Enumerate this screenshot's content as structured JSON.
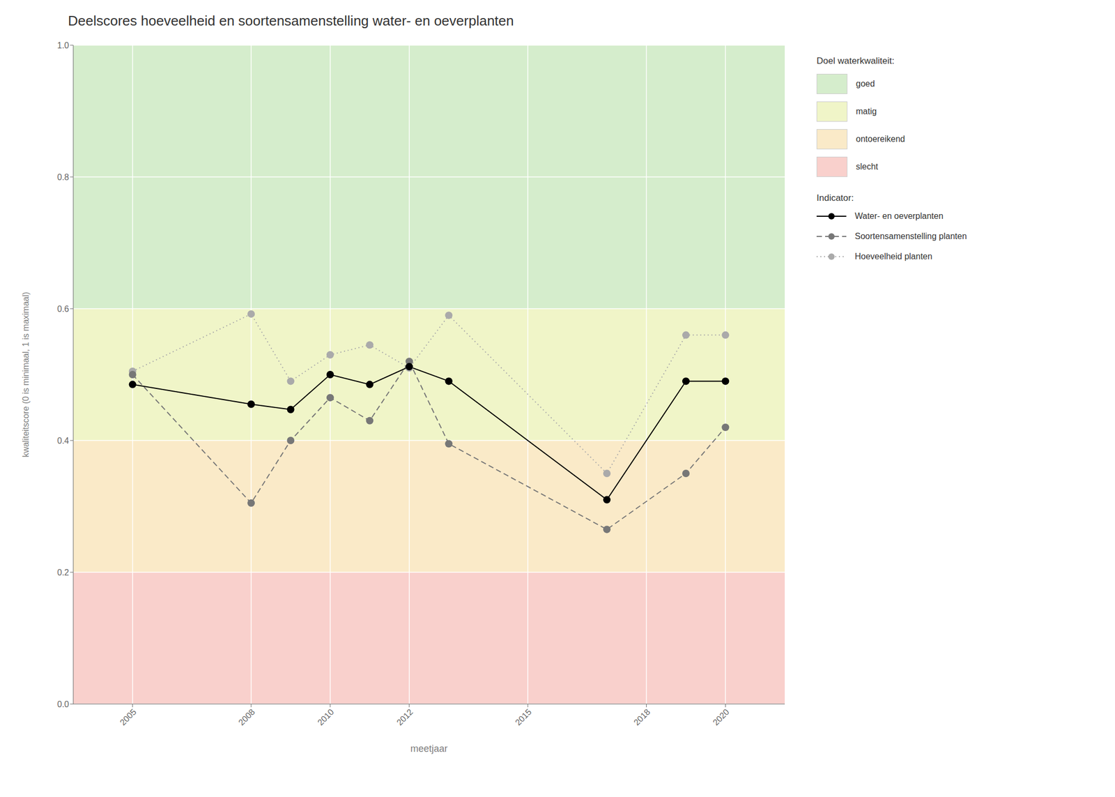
{
  "chart_data": {
    "type": "line",
    "title": "Deelscores hoeveelheid en soortensamenstelling water- en oeverplanten",
    "x_label": "meetjaar",
    "y_label": "kwaliteitscore (0 is minimaal, 1 is maximaal)",
    "xlim": [
      2003.5,
      2021.5
    ],
    "xticks": [
      2005,
      2008,
      2010,
      2012,
      2015,
      2018,
      2020
    ],
    "ylim": [
      0.0,
      1.0
    ],
    "yticks": [
      {
        "value": 0.0,
        "label": "0.0"
      },
      0.2,
      0.4,
      0.6,
      0.8,
      {
        "value": 1.0,
        "label": "1.0"
      }
    ],
    "grid": true,
    "legend": "right",
    "legend_title": "Indicator:",
    "bands": {
      "title": "Doel waterkwaliteit:",
      "items": [
        {
          "name": "goed",
          "color": "#d5edcc",
          "range": [
            0.6,
            1.0
          ]
        },
        {
          "name": "matig",
          "color": "#f0f5c8",
          "range": [
            0.4,
            0.6
          ]
        },
        {
          "name": "ontoereikend",
          "color": "#faeac8",
          "range": [
            0.2,
            0.4
          ]
        },
        {
          "name": "slecht",
          "color": "#f9d0cc",
          "range": [
            0.0,
            0.2
          ]
        }
      ]
    },
    "x": [
      2005,
      2008,
      2009,
      2010,
      2011,
      2012,
      2013,
      2017,
      2019,
      2020
    ],
    "series": [
      {
        "name": "Water- en oeverplanten",
        "color": "#000000",
        "line_style": "solid",
        "marker": "circle",
        "values": [
          0.485,
          0.455,
          0.447,
          0.5,
          0.485,
          0.512,
          0.49,
          0.31,
          0.49,
          0.49
        ]
      },
      {
        "name": "Soortensamenstelling planten",
        "color": "#777777",
        "line_style": "dashed",
        "marker": "circle",
        "values": [
          0.5,
          0.305,
          0.4,
          0.465,
          0.43,
          0.52,
          0.395,
          0.265,
          0.35,
          0.42
        ]
      },
      {
        "name": "Hoeveelheid planten",
        "color": "#aaaaaa",
        "line_style": "dotted",
        "marker": "circle",
        "values": [
          0.505,
          0.592,
          0.49,
          0.53,
          0.545,
          0.51,
          0.59,
          0.35,
          0.56,
          0.56
        ]
      }
    ]
  }
}
